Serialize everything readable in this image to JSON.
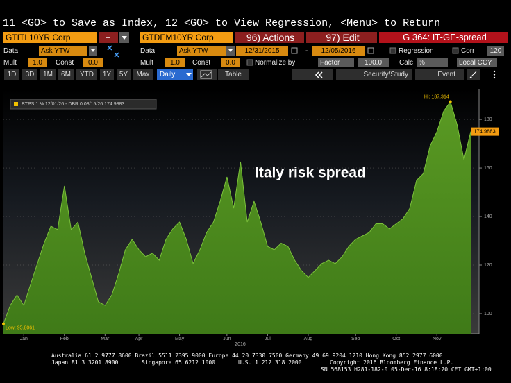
{
  "command_line": "11 <GO> to Save as Index, 12 <GO> to View Regression, <Menu> to Return",
  "toolbar": {
    "actions": "96) Actions",
    "edit": "97) Edit",
    "function": "G 364: IT-GE-spread"
  },
  "security_1": {
    "ticker": "GTITL10YR Corp",
    "data_label": "Data",
    "data": "Ask YTW",
    "mult_label": "Mult",
    "mult": "1.0",
    "const_label": "Const",
    "const": "0.0"
  },
  "security_2": {
    "ticker": "GTDEM10YR Corp",
    "data_label": "Data",
    "data": "Ask YTW",
    "mult_label": "Mult",
    "mult": "1.0",
    "const_label": "Const",
    "const": "0.0"
  },
  "range": {
    "start": "12/31/2015",
    "separator": "-",
    "end": "12/05/2016"
  },
  "options": {
    "regression": "Regression",
    "corr": "Corr",
    "corr_window": "120",
    "normalize": "Normalize by",
    "normalize_method": "Factor",
    "factor": "100.0",
    "calc_label": "Calc",
    "calc": "%",
    "currency": "Local CCY"
  },
  "periods": [
    "1D",
    "3D",
    "1M",
    "6M",
    "YTD",
    "1Y",
    "5Y",
    "Max"
  ],
  "frequency": "Daily",
  "buttons": {
    "table": "Table",
    "security_study": "Security/Study",
    "event": "Event"
  },
  "chart_data": {
    "type": "area",
    "title": "Italy risk spread",
    "x_group_label": "2016",
    "categories": [
      null,
      null,
      null,
      "Jan",
      null,
      null,
      null,
      null,
      null,
      "Feb",
      null,
      null,
      null,
      null,
      null,
      "Mar",
      null,
      null,
      null,
      null,
      "Apr",
      null,
      null,
      null,
      null,
      null,
      "May",
      null,
      null,
      null,
      null,
      null,
      null,
      "Jun",
      null,
      null,
      null,
      null,
      null,
      "Jul",
      null,
      null,
      null,
      null,
      null,
      "Aug",
      null,
      null,
      null,
      null,
      null,
      null,
      "Sep",
      null,
      null,
      null,
      null,
      null,
      "Oct",
      null,
      null,
      null,
      null,
      null,
      "Nov",
      null,
      null,
      null,
      null,
      null
    ],
    "series": [
      {
        "name": "BTPS 1 ⅛ 12/01/26 - DBR 0 08/15/26 174.9883",
        "color": "#7bc23a",
        "values": [
          95.8061,
          103.4,
          107.7,
          103.4,
          112,
          120.6,
          129,
          136,
          134.6,
          152.6,
          134.6,
          137.7,
          124.9,
          114.9,
          104.9,
          103.4,
          107.7,
          116.3,
          126.3,
          130.6,
          126.3,
          123.4,
          124.9,
          122,
          130.6,
          134.9,
          137.7,
          130.6,
          120.6,
          126.3,
          133.4,
          137.7,
          146.3,
          156.3,
          143.4,
          162.6,
          137.7,
          146.3,
          137.7,
          127.7,
          126.3,
          129,
          127.7,
          122,
          117.7,
          114.9,
          117.7,
          120.6,
          122,
          120.6,
          123.4,
          127.7,
          130.6,
          132,
          133.4,
          137,
          137,
          134.9,
          137,
          139.1,
          143.4,
          154.9,
          157.7,
          169.1,
          174.9,
          183.4,
          187.314,
          177.7,
          163.4,
          174.9883
        ]
      }
    ],
    "annotations": {
      "high": "Hi: 187.314",
      "low": "Low: 95.8061"
    },
    "ylim": [
      91.7,
      192.6
    ],
    "yticks": [
      100,
      120,
      140,
      160,
      180
    ],
    "grid": true
  },
  "footer": {
    "contacts": "Australia 61 2 9777 8600 Brazil 5511 2395 9000 Europe 44 20 7330 7500 Germany 49 69 9204 1210 Hong Kong 852 2977 6000",
    "japan": "Japan 81 3 3201 8900",
    "singapore": "Singapore 65 6212 1000",
    "us": "U.S. 1 212 318 2000",
    "copyright": "Copyright 2016 Bloomberg Finance L.P.",
    "session": "SN 568153 H281-182-0 05-Dec-16  8:18:20 CET  GMT+1:00"
  }
}
